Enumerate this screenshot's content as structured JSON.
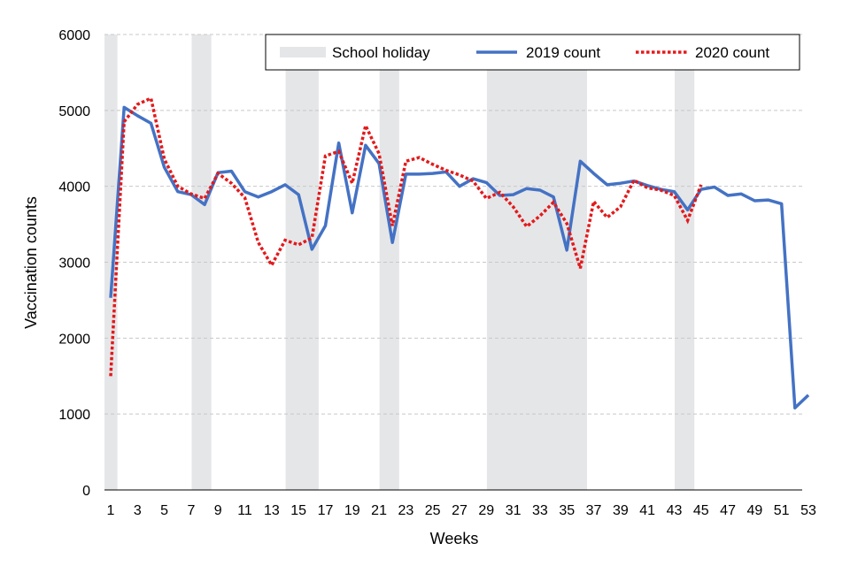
{
  "chart_data": {
    "type": "line",
    "title": "",
    "xlabel": "Weeks",
    "ylabel": "Vaccination counts",
    "xlim": [
      1,
      53
    ],
    "ylim": [
      0,
      6000
    ],
    "yticks": [
      0,
      1000,
      2000,
      3000,
      4000,
      5000,
      6000
    ],
    "xticks": [
      1,
      3,
      5,
      7,
      9,
      11,
      13,
      15,
      17,
      19,
      21,
      23,
      25,
      27,
      29,
      31,
      33,
      35,
      37,
      39,
      41,
      43,
      45,
      47,
      49,
      51,
      53
    ],
    "grid": true,
    "legend_position": "top-right",
    "holidays": {
      "name": "School holiday",
      "color": "#e5e6e8",
      "ranges": [
        [
          1,
          1.5
        ],
        [
          7.5,
          8.5
        ],
        [
          14.5,
          16.5
        ],
        [
          21.5,
          22.5
        ],
        [
          29.5,
          36.5
        ],
        [
          43.5,
          44.5
        ]
      ]
    },
    "series": [
      {
        "name": "2019 count",
        "color": "#4472c4",
        "style": "solid",
        "x": [
          1,
          2,
          3,
          4,
          5,
          6,
          7,
          8,
          9,
          10,
          11,
          12,
          13,
          14,
          15,
          16,
          17,
          18,
          19,
          20,
          21,
          22,
          23,
          24,
          25,
          26,
          27,
          28,
          29,
          30,
          31,
          32,
          33,
          34,
          35,
          36,
          37,
          38,
          39,
          40,
          41,
          42,
          43,
          44,
          45,
          46,
          47,
          48,
          49,
          50,
          51,
          52,
          53
        ],
        "values": [
          2530,
          5040,
          4930,
          4830,
          4250,
          3930,
          3890,
          3760,
          4180,
          4200,
          3930,
          3860,
          3930,
          4020,
          3890,
          3170,
          3480,
          4570,
          3650,
          4540,
          4300,
          3260,
          4160,
          4160,
          4170,
          4190,
          4000,
          4100,
          4050,
          3880,
          3890,
          3970,
          3950,
          3860,
          3160,
          4330,
          4170,
          4020,
          4040,
          4070,
          4010,
          3960,
          3930,
          3690,
          3960,
          3990,
          3880,
          3900,
          3810,
          3820,
          3770,
          1080,
          1250
        ]
      },
      {
        "name": "2020 count",
        "color": "#e31a1c",
        "style": "dotted",
        "x": [
          1,
          2,
          3,
          4,
          5,
          6,
          7,
          8,
          9,
          10,
          11,
          12,
          13,
          14,
          15,
          16,
          17,
          18,
          19,
          20,
          21,
          22,
          23,
          24,
          25,
          26,
          27,
          28,
          29,
          30,
          31,
          32,
          33,
          34,
          35,
          36,
          37,
          38,
          39,
          40,
          41,
          42,
          43,
          44,
          45
        ],
        "values": [
          1500,
          4850,
          5080,
          5160,
          4360,
          4000,
          3900,
          3840,
          4170,
          4040,
          3850,
          3260,
          2960,
          3290,
          3230,
          3320,
          4400,
          4460,
          4040,
          4800,
          4430,
          3480,
          4330,
          4380,
          4290,
          4210,
          4150,
          4070,
          3840,
          3920,
          3730,
          3470,
          3610,
          3790,
          3510,
          2920,
          3800,
          3590,
          3730,
          4080,
          3980,
          3950,
          3880,
          3550,
          4020
        ]
      }
    ]
  }
}
